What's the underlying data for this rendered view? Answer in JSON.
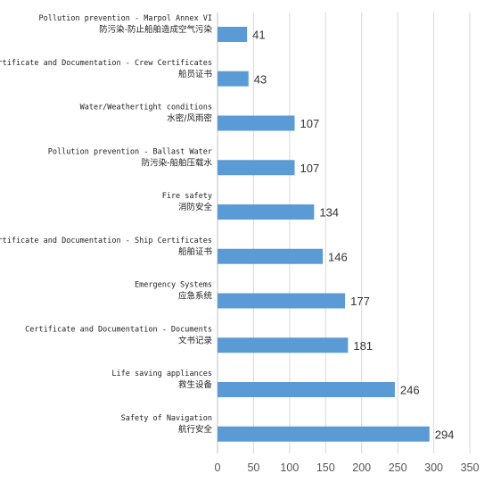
{
  "chart_data": {
    "type": "bar",
    "orientation": "horizontal",
    "categories": [
      {
        "en": "Pollution prevention - Marpol Annex VI",
        "zh": "防污染-防止船舶造成空气污染"
      },
      {
        "en": "Certificate and Documentation - Crew Certificates",
        "zh": "船员证书"
      },
      {
        "en": "Water/Weathertight conditions",
        "zh": "水密/风雨密"
      },
      {
        "en": "Pollution prevention - Ballast Water",
        "zh": "防污染-船舶压载水"
      },
      {
        "en": "Fire safety",
        "zh": "消防安全"
      },
      {
        "en": "Certificate and Documentation - Ship Certificates",
        "zh": "船舶证书"
      },
      {
        "en": "Emergency Systems",
        "zh": "应急系统"
      },
      {
        "en": "Certificate and Documentation - Documents",
        "zh": "文书记录"
      },
      {
        "en": "Life saving appliances",
        "zh": "救生设备"
      },
      {
        "en": "Safety of Navigation",
        "zh": "航行安全"
      }
    ],
    "values": [
      41,
      43,
      107,
      107,
      134,
      146,
      177,
      181,
      246,
      294
    ],
    "xlim": [
      0,
      350
    ],
    "xticks": [
      0,
      50,
      100,
      150,
      200,
      250,
      300,
      350
    ],
    "grid": "vertical",
    "data_labels": true,
    "bar_color": "#5b9bd5"
  }
}
